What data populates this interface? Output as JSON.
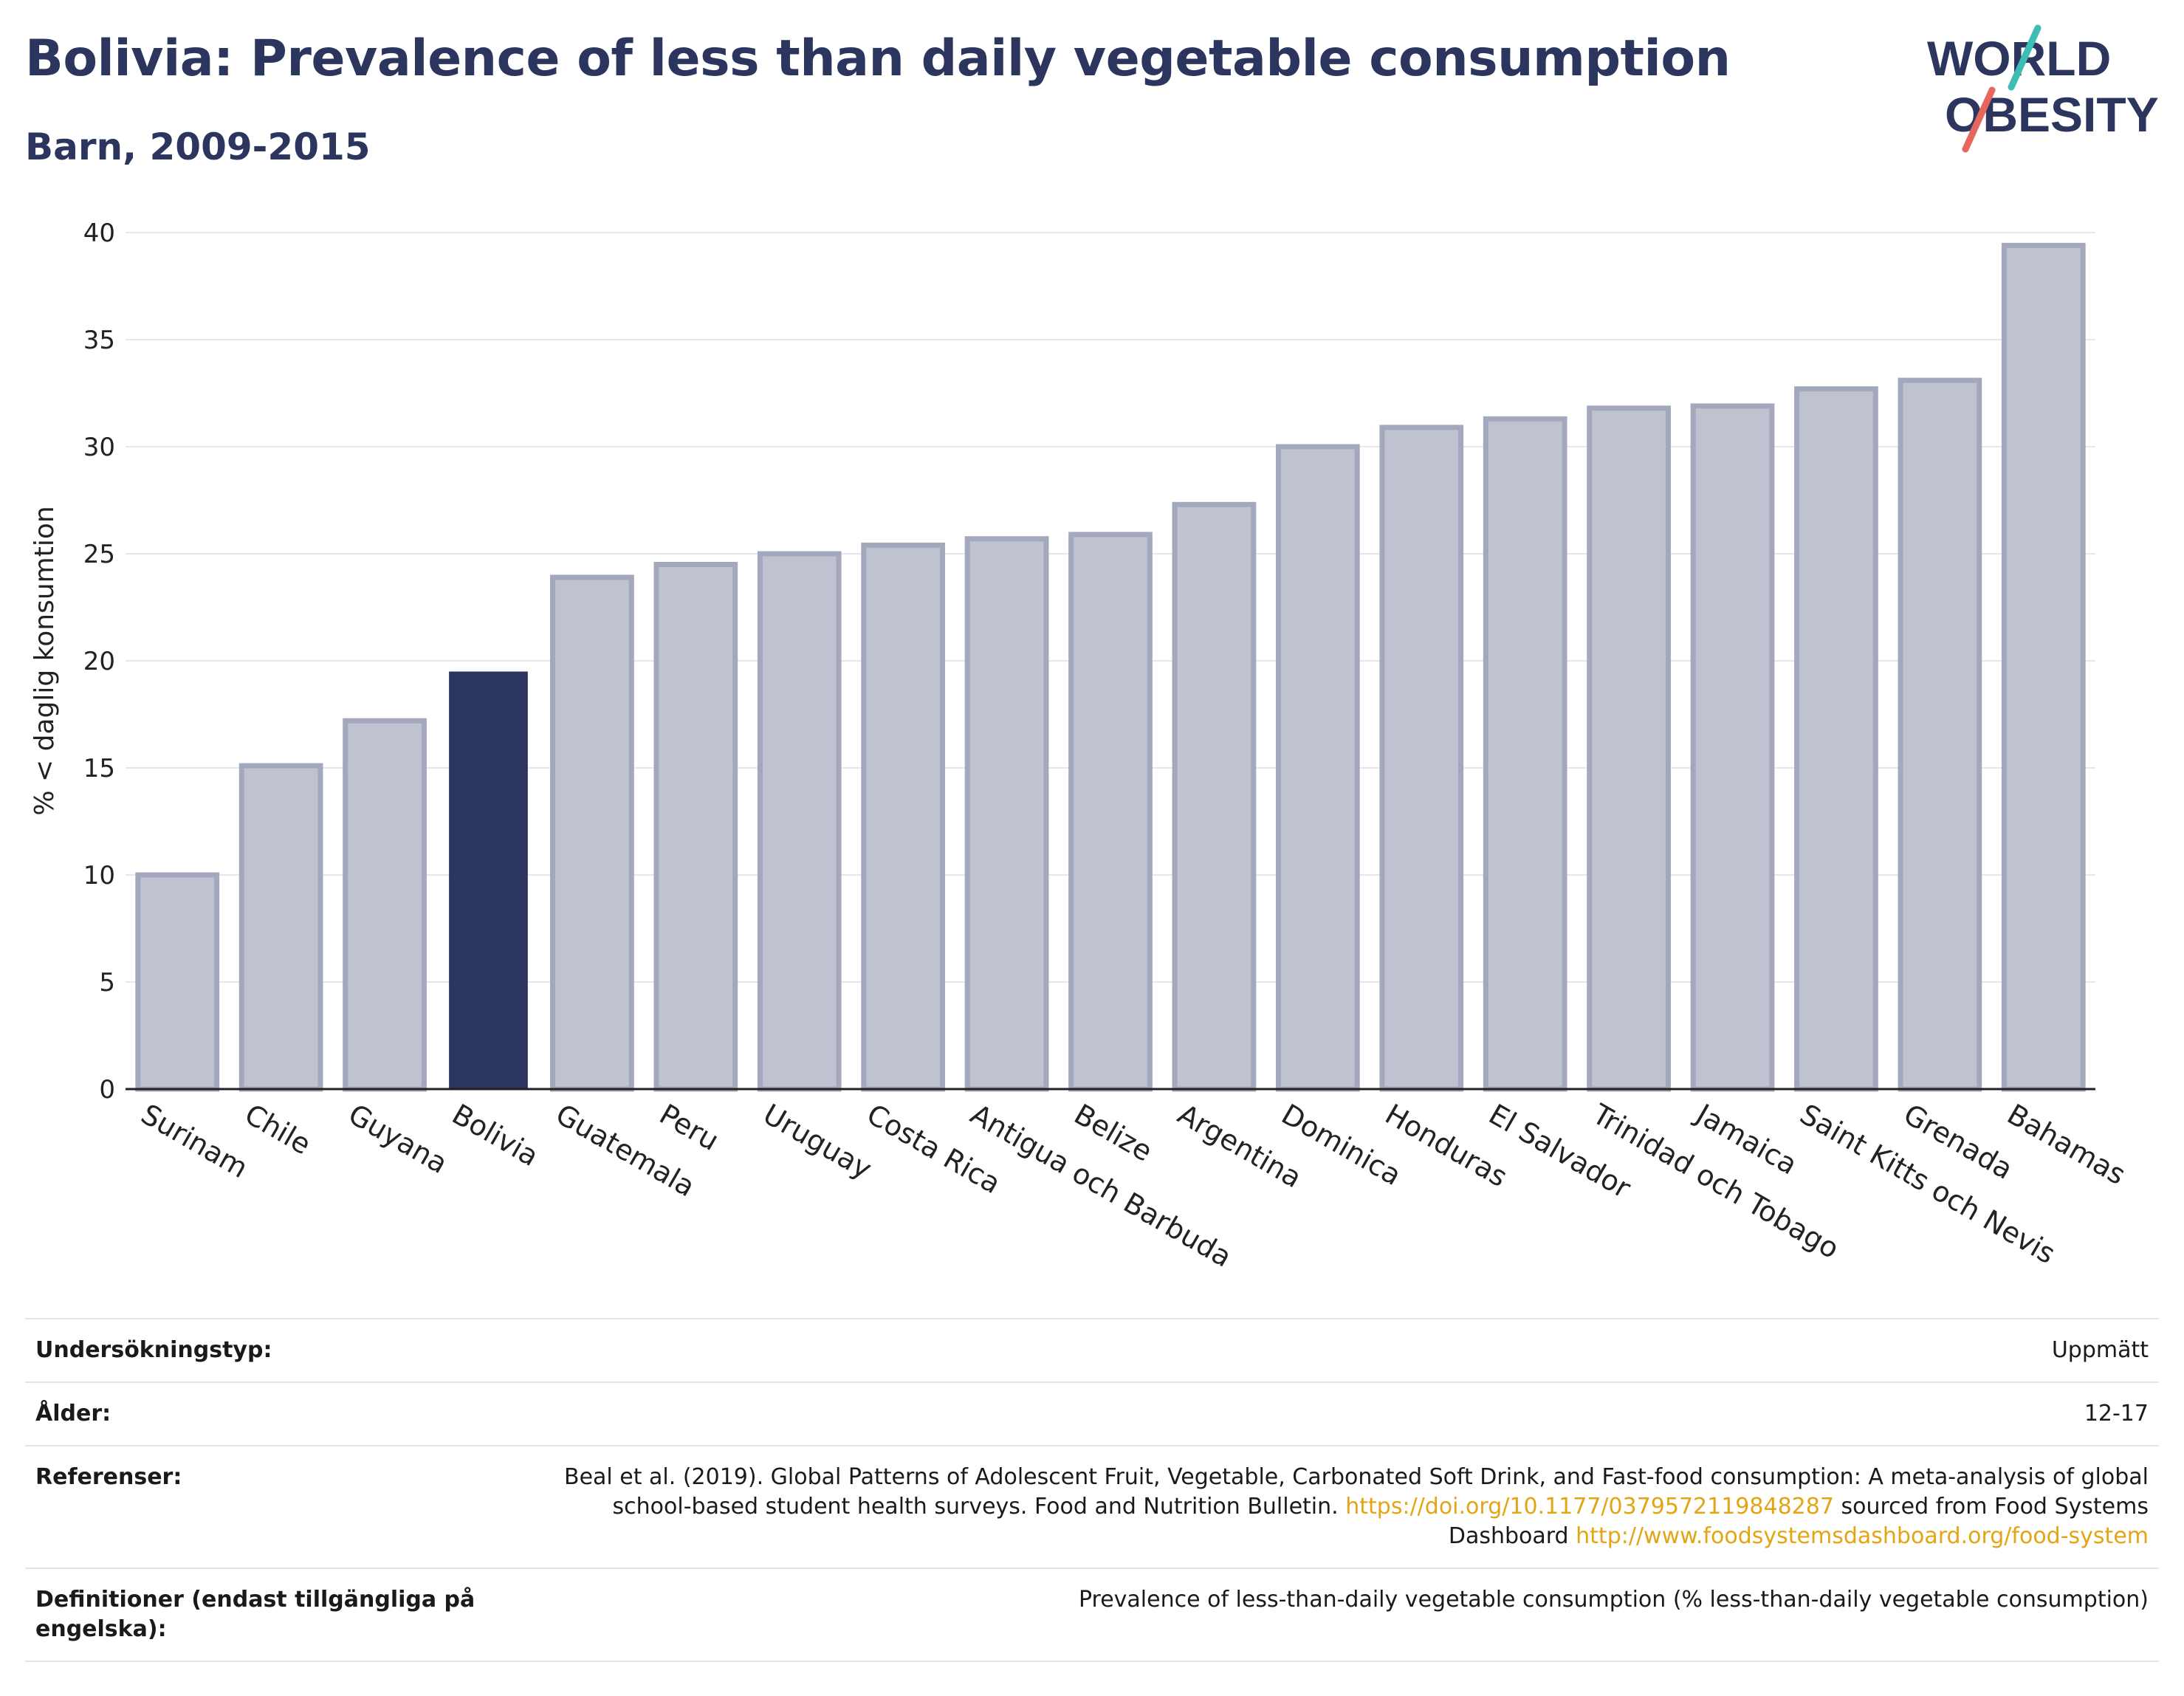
{
  "title": "Bolivia: Prevalence of less than daily vegetable consumption",
  "subtitle": "Barn, 2009-2015",
  "logo": {
    "line1": "WORLD",
    "line2": "OBESITY"
  },
  "colors": {
    "highlight": "#2b355e",
    "bar": "#bfc2cf",
    "bar_border": "#a3a8bd",
    "title": "#2b355e",
    "link": "#e3a514"
  },
  "chart_data": {
    "type": "bar",
    "categories": [
      "Surinam",
      "Chile",
      "Guyana",
      "Bolivia",
      "Guatemala",
      "Peru",
      "Uruguay",
      "Costa Rica",
      "Antigua och Barbuda",
      "Belize",
      "Argentina",
      "Dominica",
      "Honduras",
      "El Salvador",
      "Trinidad och Tobago",
      "Jamaica",
      "Saint Kitts och Nevis",
      "Grenada",
      "Bahamas"
    ],
    "values": [
      10.0,
      15.1,
      17.2,
      19.5,
      23.9,
      24.5,
      25.0,
      25.4,
      25.7,
      25.9,
      27.3,
      30.0,
      30.9,
      31.3,
      31.8,
      31.9,
      32.7,
      33.1,
      39.4
    ],
    "highlight": "Bolivia",
    "ylabel": "% < daglig konsumtion",
    "xlabel": "",
    "ylim": [
      0,
      40
    ],
    "yticks": [
      0,
      5,
      10,
      15,
      20,
      25,
      30,
      35,
      40
    ],
    "grid": true
  },
  "info": {
    "survey_type": {
      "label": "Undersökningstyp:",
      "value": "Uppmätt"
    },
    "age": {
      "label": "Ålder:",
      "value": "12-17"
    },
    "references": {
      "label": "Referenser:",
      "text1": "Beal et al. (2019). Global Patterns of Adolescent Fruit, Vegetable, Carbonated Soft Drink, and Fast-food consumption: A meta-analysis of global school-based student health surveys. Food and Nutrition Bulletin.",
      "link1": "https://doi.org/10.1177/0379572119848287",
      "text2": "sourced from Food Systems Dashboard",
      "link2": "http://www.foodsystemsdashboard.org/food-system"
    },
    "definitions": {
      "label": "Definitioner (endast tillgängliga på engelska):",
      "value": "Prevalence of less-than-daily vegetable consumption (% less-than-daily vegetable consumption)"
    }
  }
}
